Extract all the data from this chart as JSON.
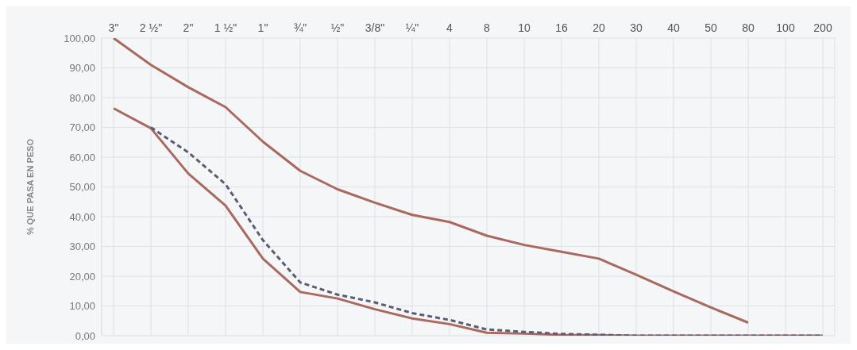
{
  "chart_data": {
    "type": "line",
    "ylabel": "% QUE PASA EN PESO",
    "categories": [
      "3\"",
      "2 ½\"",
      "2\"",
      "1 ½\"",
      "1\"",
      "¾\"",
      "½\"",
      "3/8\"",
      "¼\"",
      "4",
      "8",
      "10",
      "16",
      "20",
      "30",
      "40",
      "50",
      "80",
      "100",
      "200"
    ],
    "series": [
      {
        "color": "#a9695f",
        "line_style": "solid",
        "values": [
          100,
          91,
          83.5,
          76.8,
          65.2,
          55.4,
          49.2,
          44.7,
          40.6,
          38.2,
          33.6,
          30.5,
          28.2,
          25.9,
          20.5,
          14.9,
          9.5,
          4.4,
          null,
          null
        ]
      },
      {
        "color": "#a9695f",
        "line_style": "solid",
        "values": [
          76.4,
          69.7,
          54.5,
          43.7,
          25.9,
          14.7,
          12.5,
          8.9,
          5.8,
          3.9,
          1,
          0.7,
          0.3,
          0.2,
          0,
          0,
          0,
          0,
          0,
          0
        ]
      },
      {
        "color": "#5c5c72",
        "line_style": "dashed",
        "values": [
          null,
          70,
          61.6,
          50.9,
          32.1,
          17.9,
          13.8,
          11.2,
          7.6,
          5.3,
          2.1,
          1.3,
          0.6,
          0.3,
          0,
          0,
          0,
          0,
          0,
          0
        ]
      }
    ],
    "ylim": [
      0,
      100
    ],
    "yticks": [
      {
        "value": 0,
        "label": "0,00"
      },
      {
        "value": 10,
        "label": "10,00"
      },
      {
        "value": 20,
        "label": "20,00"
      },
      {
        "value": 30,
        "label": "30,00"
      },
      {
        "value": 40,
        "label": "40,00"
      },
      {
        "value": 50,
        "label": "50,00"
      },
      {
        "value": 60,
        "label": "60,00"
      },
      {
        "value": 70,
        "label": "70,00"
      },
      {
        "value": 80,
        "label": "80,00"
      },
      {
        "value": 90,
        "label": "90,00"
      },
      {
        "value": 100,
        "label": "100,00"
      }
    ],
    "grid": true,
    "legend": false,
    "marker": "none"
  }
}
